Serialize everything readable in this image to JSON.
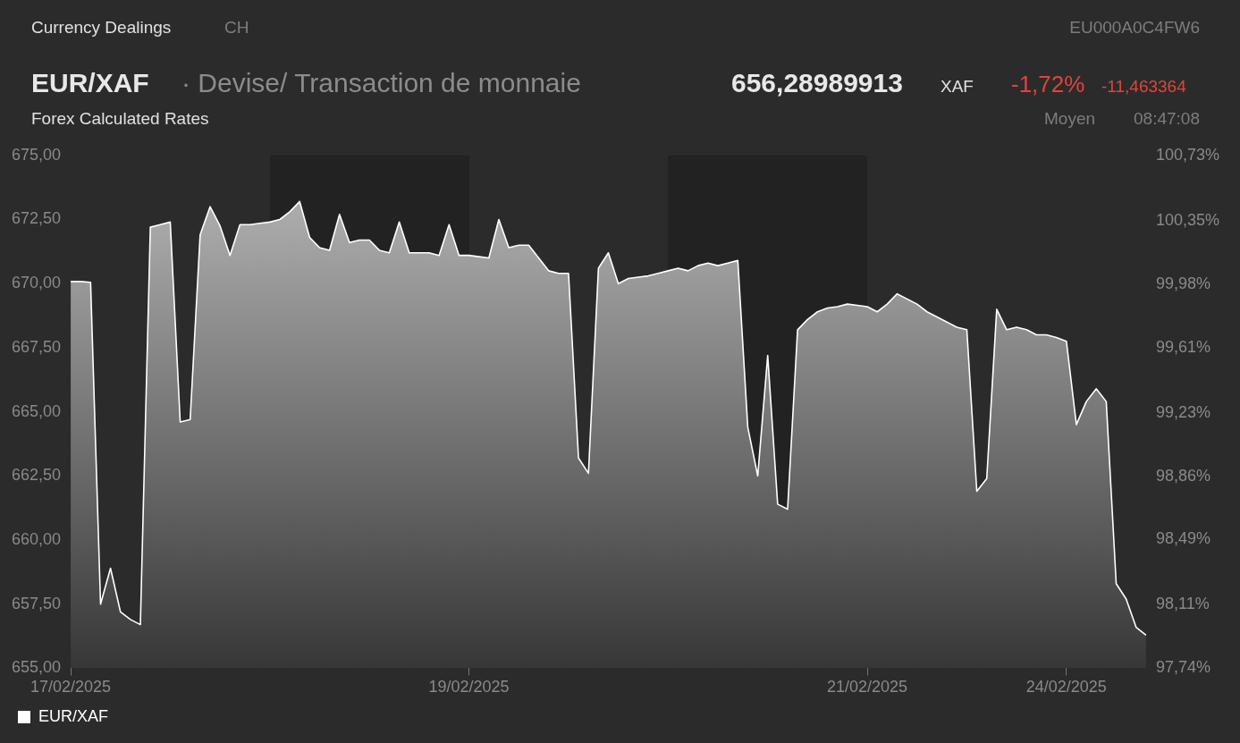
{
  "chart_data": {
    "type": "area",
    "title": "EUR/XAF",
    "subtitle": "· Devise/ Transaction de monnaie",
    "annotations": [
      "Currency Dealings",
      "CH",
      "EU000A0C4FW6",
      "656,28989913",
      "XAF",
      "-1,72%",
      "-11,463364",
      "Forex Calculated Rates",
      "Moyen",
      "08:47:08"
    ],
    "categories": [
      "17/02/2025",
      null,
      null,
      null,
      null,
      null,
      null,
      null,
      null,
      null,
      null,
      null,
      null,
      null,
      null,
      null,
      null,
      null,
      null,
      null,
      null,
      null,
      null,
      null,
      null,
      null,
      null,
      null,
      null,
      null,
      null,
      null,
      null,
      null,
      null,
      null,
      null,
      null,
      null,
      null,
      "19/02/2025",
      null,
      null,
      null,
      null,
      null,
      null,
      null,
      null,
      null,
      null,
      null,
      null,
      null,
      null,
      null,
      null,
      null,
      null,
      null,
      null,
      null,
      null,
      null,
      null,
      null,
      null,
      null,
      null,
      null,
      null,
      null,
      null,
      null,
      null,
      null,
      null,
      null,
      null,
      null,
      "21/02/2025",
      null,
      null,
      null,
      null,
      null,
      null,
      null,
      null,
      null,
      null,
      null,
      null,
      null,
      null,
      null,
      null,
      null,
      null,
      null,
      "24/02/2025",
      null,
      null,
      null,
      null,
      null,
      null,
      null,
      null
    ],
    "series": [
      {
        "name": "EUR/XAF",
        "color": "#ffffff",
        "values": [
          670.08,
          670.08,
          670.05,
          657.5,
          658.9,
          657.2,
          656.9,
          656.7,
          672.2,
          672.3,
          672.4,
          664.6,
          664.7,
          671.9,
          673.0,
          672.25,
          671.1,
          672.3,
          672.3,
          672.35,
          672.4,
          672.5,
          672.8,
          673.2,
          671.8,
          671.4,
          671.3,
          672.7,
          671.6,
          671.7,
          671.7,
          671.3,
          671.2,
          672.4,
          671.2,
          671.2,
          671.2,
          671.1,
          672.3,
          671.1,
          671.1,
          671.05,
          671.0,
          672.5,
          671.4,
          671.5,
          671.5,
          671.0,
          670.5,
          670.4,
          670.4,
          663.2,
          662.6,
          670.6,
          671.2,
          670.0,
          670.2,
          670.25,
          670.3,
          670.4,
          670.5,
          670.6,
          670.5,
          670.7,
          670.8,
          670.7,
          670.8,
          670.9,
          664.4,
          662.5,
          667.2,
          661.4,
          661.2,
          668.2,
          668.6,
          668.9,
          669.05,
          669.1,
          669.2,
          669.15,
          669.1,
          668.9,
          669.2,
          669.6,
          669.4,
          669.2,
          668.9,
          668.7,
          668.5,
          668.3,
          668.2,
          661.9,
          662.4,
          669.0,
          668.2,
          668.3,
          668.2,
          668.0,
          668.0,
          667.9,
          667.75,
          664.5,
          665.4,
          665.9,
          665.4,
          658.3,
          657.7,
          656.6,
          656.29
        ]
      }
    ],
    "ylim": [
      655,
      675
    ],
    "yticks": [
      {
        "value": 655,
        "label": "655,00"
      },
      {
        "value": 657.5,
        "label": "657,50"
      },
      {
        "value": 660,
        "label": "660,00"
      },
      {
        "value": 662.5,
        "label": "662,50"
      },
      {
        "value": 665,
        "label": "665,00"
      },
      {
        "value": 667.5,
        "label": "667,50"
      },
      {
        "value": 670,
        "label": "670,00"
      },
      {
        "value": 672.5,
        "label": "672,50"
      },
      {
        "value": 675,
        "label": "675,00"
      }
    ],
    "y2lim": [
      97.74,
      100.73
    ],
    "y2ticks": [
      {
        "value": 97.74,
        "label": "97,74%"
      },
      {
        "value": 98.11,
        "label": "98,11%"
      },
      {
        "value": 98.49,
        "label": "98,49%"
      },
      {
        "value": 98.86,
        "label": "98,86%"
      },
      {
        "value": 99.23,
        "label": "99,23%"
      },
      {
        "value": 99.61,
        "label": "99,61%"
      },
      {
        "value": 99.98,
        "label": "99,98%"
      },
      {
        "value": 100.35,
        "label": "100,35%"
      },
      {
        "value": 100.73,
        "label": "100,73%"
      }
    ],
    "grid": false,
    "legend": "bottom left",
    "marker": "none",
    "line_style": "solid"
  }
}
